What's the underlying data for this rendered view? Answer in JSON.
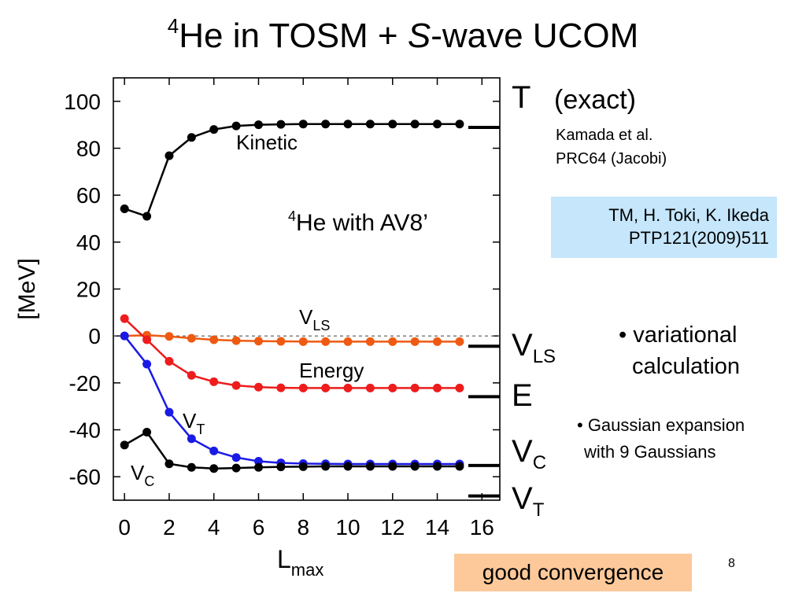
{
  "slide": {
    "title_sup": "4",
    "title_pre": "He in TOSM + ",
    "title_s": "S",
    "title_post": "-wave UCOM",
    "page_number": "8"
  },
  "right_labels": {
    "t_main": "T",
    "t_exact": "(exact)",
    "kamada": "Kamada et al.",
    "prc": "PRC64  (Jacobi)",
    "vls_main": "V",
    "vls_sub": "LS",
    "e_main": "E",
    "vc_main": "V",
    "vc_sub": "C",
    "vt_main": "V",
    "vt_sub": "T",
    "exact_markers": [
      {
        "name": "T",
        "value": 88.9
      },
      {
        "name": "VLS",
        "value": -4.4
      },
      {
        "name": "E",
        "value": -25.9
      },
      {
        "name": "VC",
        "value": -55.2
      },
      {
        "name": "VT",
        "value": -68.2
      }
    ]
  },
  "reference_box": {
    "line1": "TM, H. Toki, K. Ikeda",
    "line2": "PTP121(2009)511",
    "color": "#c5e6fb"
  },
  "notes": {
    "bullet1_line1": "• variational",
    "bullet1_line2": "calculation",
    "bullet2_line1": "• Gaussian expansion",
    "bullet2_line2": "with 9 Gaussians"
  },
  "conclusion": {
    "text": "good convergence",
    "color": "#fdc99a"
  },
  "chart_data": {
    "type": "line",
    "xlabel_main": "L",
    "xlabel_sub": "max",
    "ylabel": "[MeV]",
    "xlim": [
      -0.5,
      16.8
    ],
    "ylim": [
      -70,
      110
    ],
    "xticks": [
      0,
      2,
      4,
      6,
      8,
      10,
      12,
      14,
      16
    ],
    "yticks": [
      -60,
      -40,
      -20,
      0,
      20,
      40,
      60,
      80,
      100
    ],
    "zero_line": "dashed",
    "annotation_sup": "4",
    "annotation_text": "He with AV8’",
    "x": [
      0,
      1,
      2,
      3,
      4,
      5,
      6,
      7,
      8,
      9,
      10,
      11,
      12,
      13,
      14,
      15
    ],
    "series": [
      {
        "label_main": "Kinetic",
        "label_sub": "",
        "color": "#000000",
        "values": [
          54.2,
          51.0,
          76.8,
          84.6,
          88.0,
          89.5,
          90.0,
          90.2,
          90.3,
          90.3,
          90.3,
          90.3,
          90.3,
          90.3,
          90.3,
          90.3
        ]
      },
      {
        "label_main": "V",
        "label_sub": "LS",
        "color": "#ee5a12",
        "values": [
          0.0,
          0.3,
          -0.2,
          -1.0,
          -1.6,
          -2.0,
          -2.2,
          -2.3,
          -2.4,
          -2.4,
          -2.4,
          -2.4,
          -2.4,
          -2.4,
          -2.4,
          -2.4
        ]
      },
      {
        "label_main": "Energy",
        "label_sub": "",
        "color": "#ee1c1c",
        "values": [
          7.4,
          -1.6,
          -10.8,
          -16.8,
          -19.5,
          -21.1,
          -21.8,
          -22.1,
          -22.2,
          -22.2,
          -22.2,
          -22.2,
          -22.2,
          -22.2,
          -22.2,
          -22.2
        ]
      },
      {
        "label_main": "V",
        "label_sub": "T",
        "color": "#1a1ae6",
        "values": [
          0.0,
          -12.0,
          -32.5,
          -43.8,
          -49.0,
          -51.8,
          -53.4,
          -54.1,
          -54.4,
          -54.5,
          -54.6,
          -54.6,
          -54.6,
          -54.6,
          -54.6,
          -54.6
        ]
      },
      {
        "label_main": "V",
        "label_sub": "C",
        "color": "#000000",
        "values": [
          -46.5,
          -41.0,
          -54.5,
          -56.0,
          -56.5,
          -56.3,
          -56.0,
          -55.8,
          -55.7,
          -55.6,
          -55.6,
          -55.6,
          -55.6,
          -55.6,
          -55.6,
          -55.6
        ]
      }
    ]
  }
}
